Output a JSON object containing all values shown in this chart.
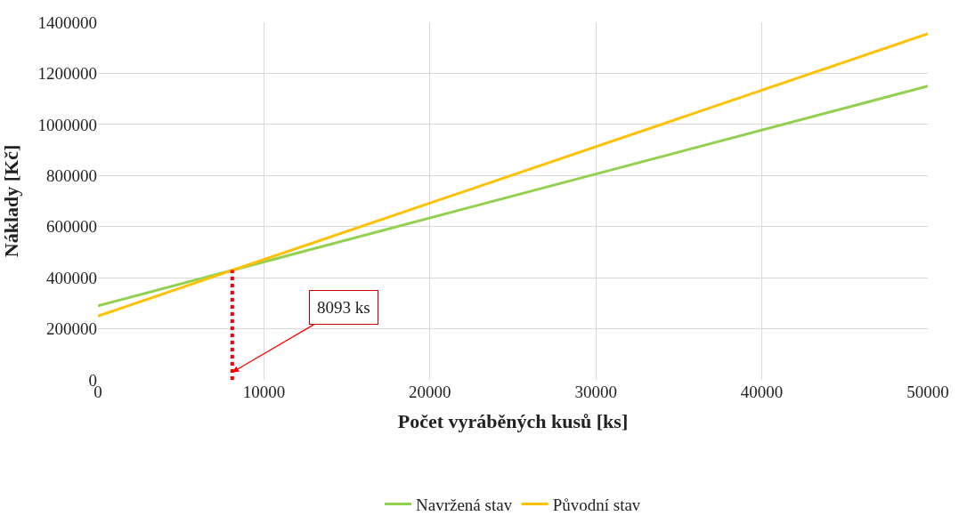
{
  "chart_data": {
    "type": "line",
    "xlabel": "Počet vyráběných kusů [ks]",
    "ylabel": "Náklady [Kč]",
    "x": [
      0,
      50000
    ],
    "series": [
      {
        "name": "Navržená stav",
        "color": "#92d050",
        "values": [
          290000,
          1150000
        ]
      },
      {
        "name": "Původní stav",
        "color": "#ffc000",
        "values": [
          250000,
          1355000
        ]
      },
      {
        "color": "#ff0000",
        "x": [
          8093,
          8093
        ],
        "values": [
          0,
          430000
        ],
        "line_style": "dotted"
      }
    ],
    "xlim": [
      0,
      50000
    ],
    "xticks": [
      0,
      10000,
      20000,
      30000,
      40000,
      50000
    ],
    "ylim": [
      0,
      1400000
    ],
    "yticks": [
      0,
      200000,
      400000,
      600000,
      800000,
      1000000,
      1200000,
      1400000
    ],
    "annotations": [
      {
        "text": "8093 ks",
        "x": 8093,
        "y": 30000
      }
    ],
    "grid": true,
    "legend": "bottom",
    "marker": "none",
    "line_style": "solid"
  }
}
